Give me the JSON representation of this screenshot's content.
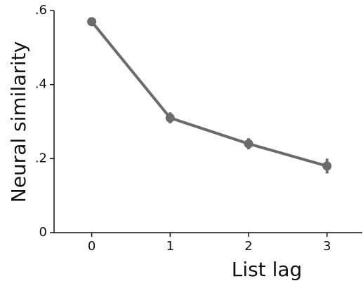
{
  "chart_data": {
    "type": "line",
    "x": [
      0,
      1,
      2,
      3
    ],
    "series": [
      {
        "color": "#6b6b6b",
        "values": [
          0.57,
          0.31,
          0.24,
          0.18
        ],
        "errors": [
          0.01,
          0.015,
          0.015,
          0.02
        ]
      }
    ],
    "xlabel": "List lag",
    "ylabel": "Neural similarity",
    "xlim": [
      -0.48,
      3.45
    ],
    "xticks": [
      0,
      1,
      2,
      3
    ],
    "ylim": [
      0,
      0.6
    ],
    "yticks": [
      {
        "value": 0,
        "label": "0"
      },
      {
        "value": 0.2,
        "label": ".2"
      },
      {
        "value": 0.4,
        "label": ".4"
      },
      {
        "value": 0.6,
        "label": ".6"
      }
    ]
  }
}
